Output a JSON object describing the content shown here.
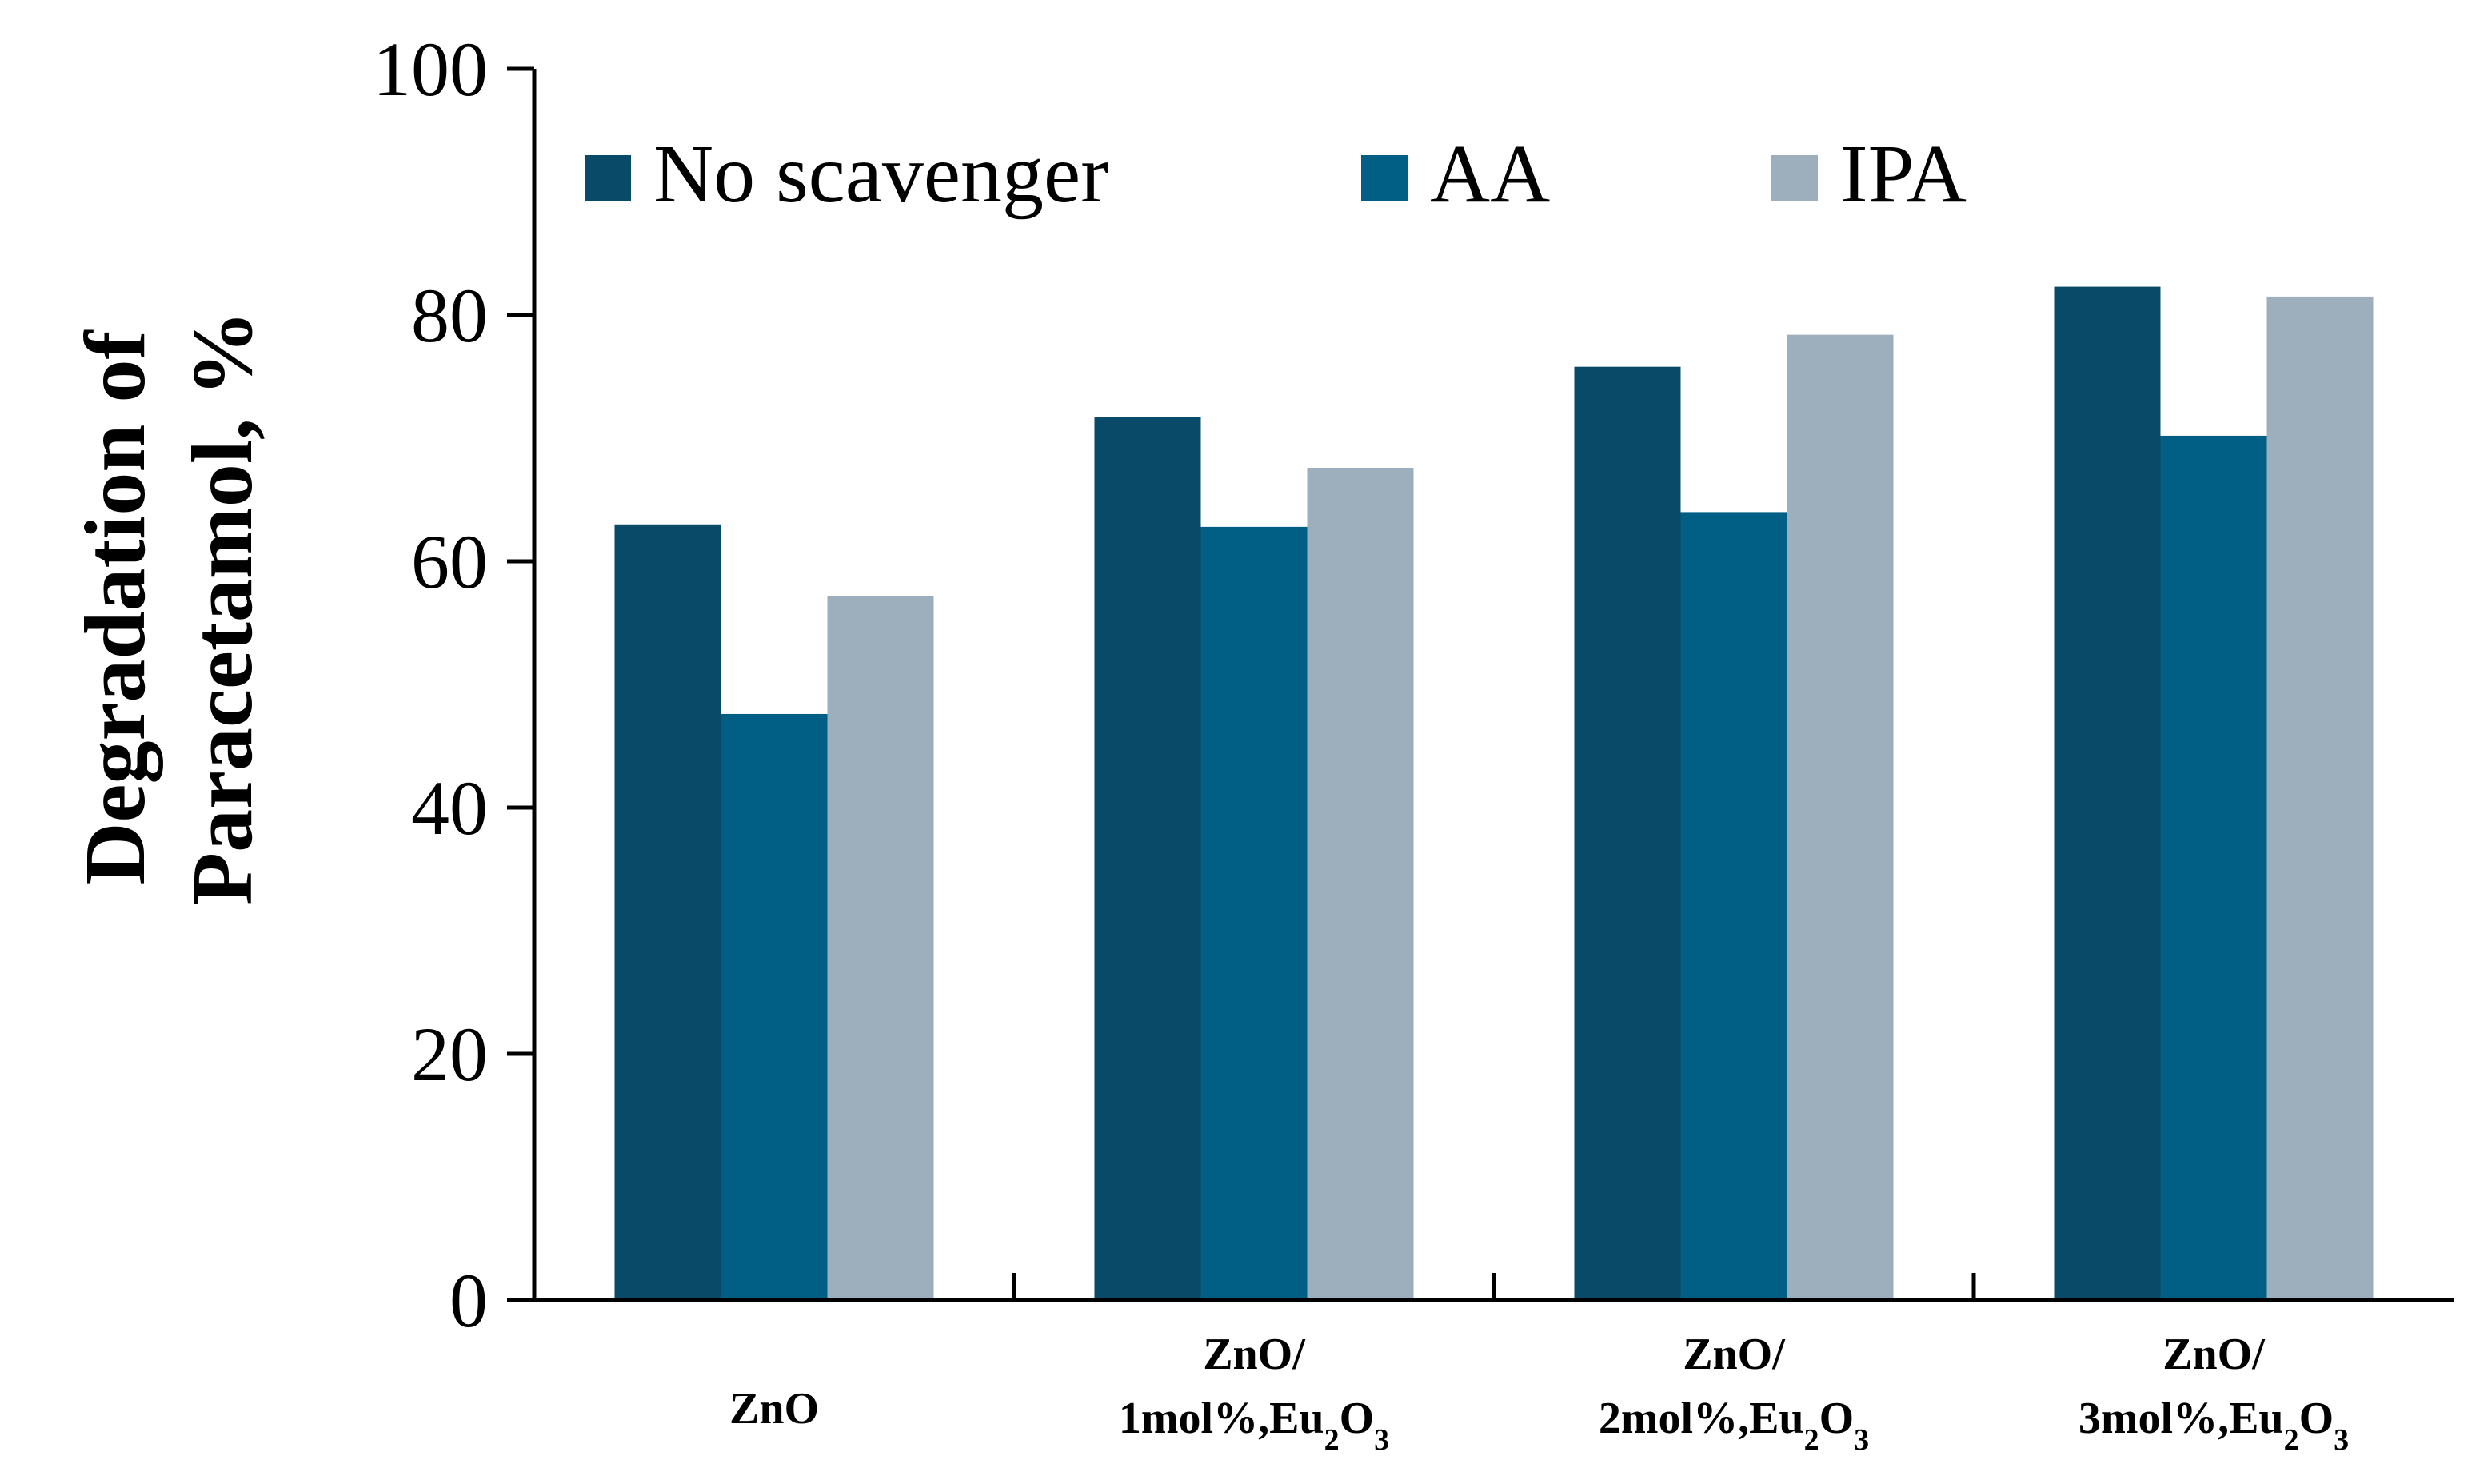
{
  "chart_data": {
    "type": "bar",
    "title": "",
    "xlabel": "",
    "ylabel_lines": [
      "Degradation of",
      "Paracetamol, %"
    ],
    "ylim": [
      0,
      100
    ],
    "yticks": [
      0,
      20,
      40,
      60,
      80,
      100
    ],
    "grid": false,
    "legend_position": "top-left",
    "categories": [
      {
        "lines": [
          [
            {
              "t": "ZnO"
            }
          ]
        ]
      },
      {
        "lines": [
          [
            {
              "t": "ZnO/"
            }
          ],
          [
            {
              "t": "1mol%,Eu"
            },
            {
              "t": "2",
              "sub": true
            },
            {
              "t": "O"
            },
            {
              "t": "3",
              "sub": true
            }
          ]
        ]
      },
      {
        "lines": [
          [
            {
              "t": "ZnO/"
            }
          ],
          [
            {
              "t": "2mol%,Eu"
            },
            {
              "t": "2",
              "sub": true
            },
            {
              "t": "O"
            },
            {
              "t": "3",
              "sub": true
            }
          ]
        ]
      },
      {
        "lines": [
          [
            {
              "t": "ZnO/"
            }
          ],
          [
            {
              "t": "3mol%,Eu"
            },
            {
              "t": "2",
              "sub": true
            },
            {
              "t": "O"
            },
            {
              "t": "3",
              "sub": true
            }
          ]
        ]
      }
    ],
    "series": [
      {
        "name": "No scavenger",
        "color": "#084a68",
        "values": [
          63,
          71.7,
          75.8,
          82.3
        ]
      },
      {
        "name": "AA",
        "color": "#015e85",
        "values": [
          47.6,
          62.8,
          64,
          70.2
        ]
      },
      {
        "name": "IPA",
        "color": "#9dafbc",
        "values": [
          57.2,
          67.6,
          78.4,
          81.5
        ]
      }
    ]
  }
}
